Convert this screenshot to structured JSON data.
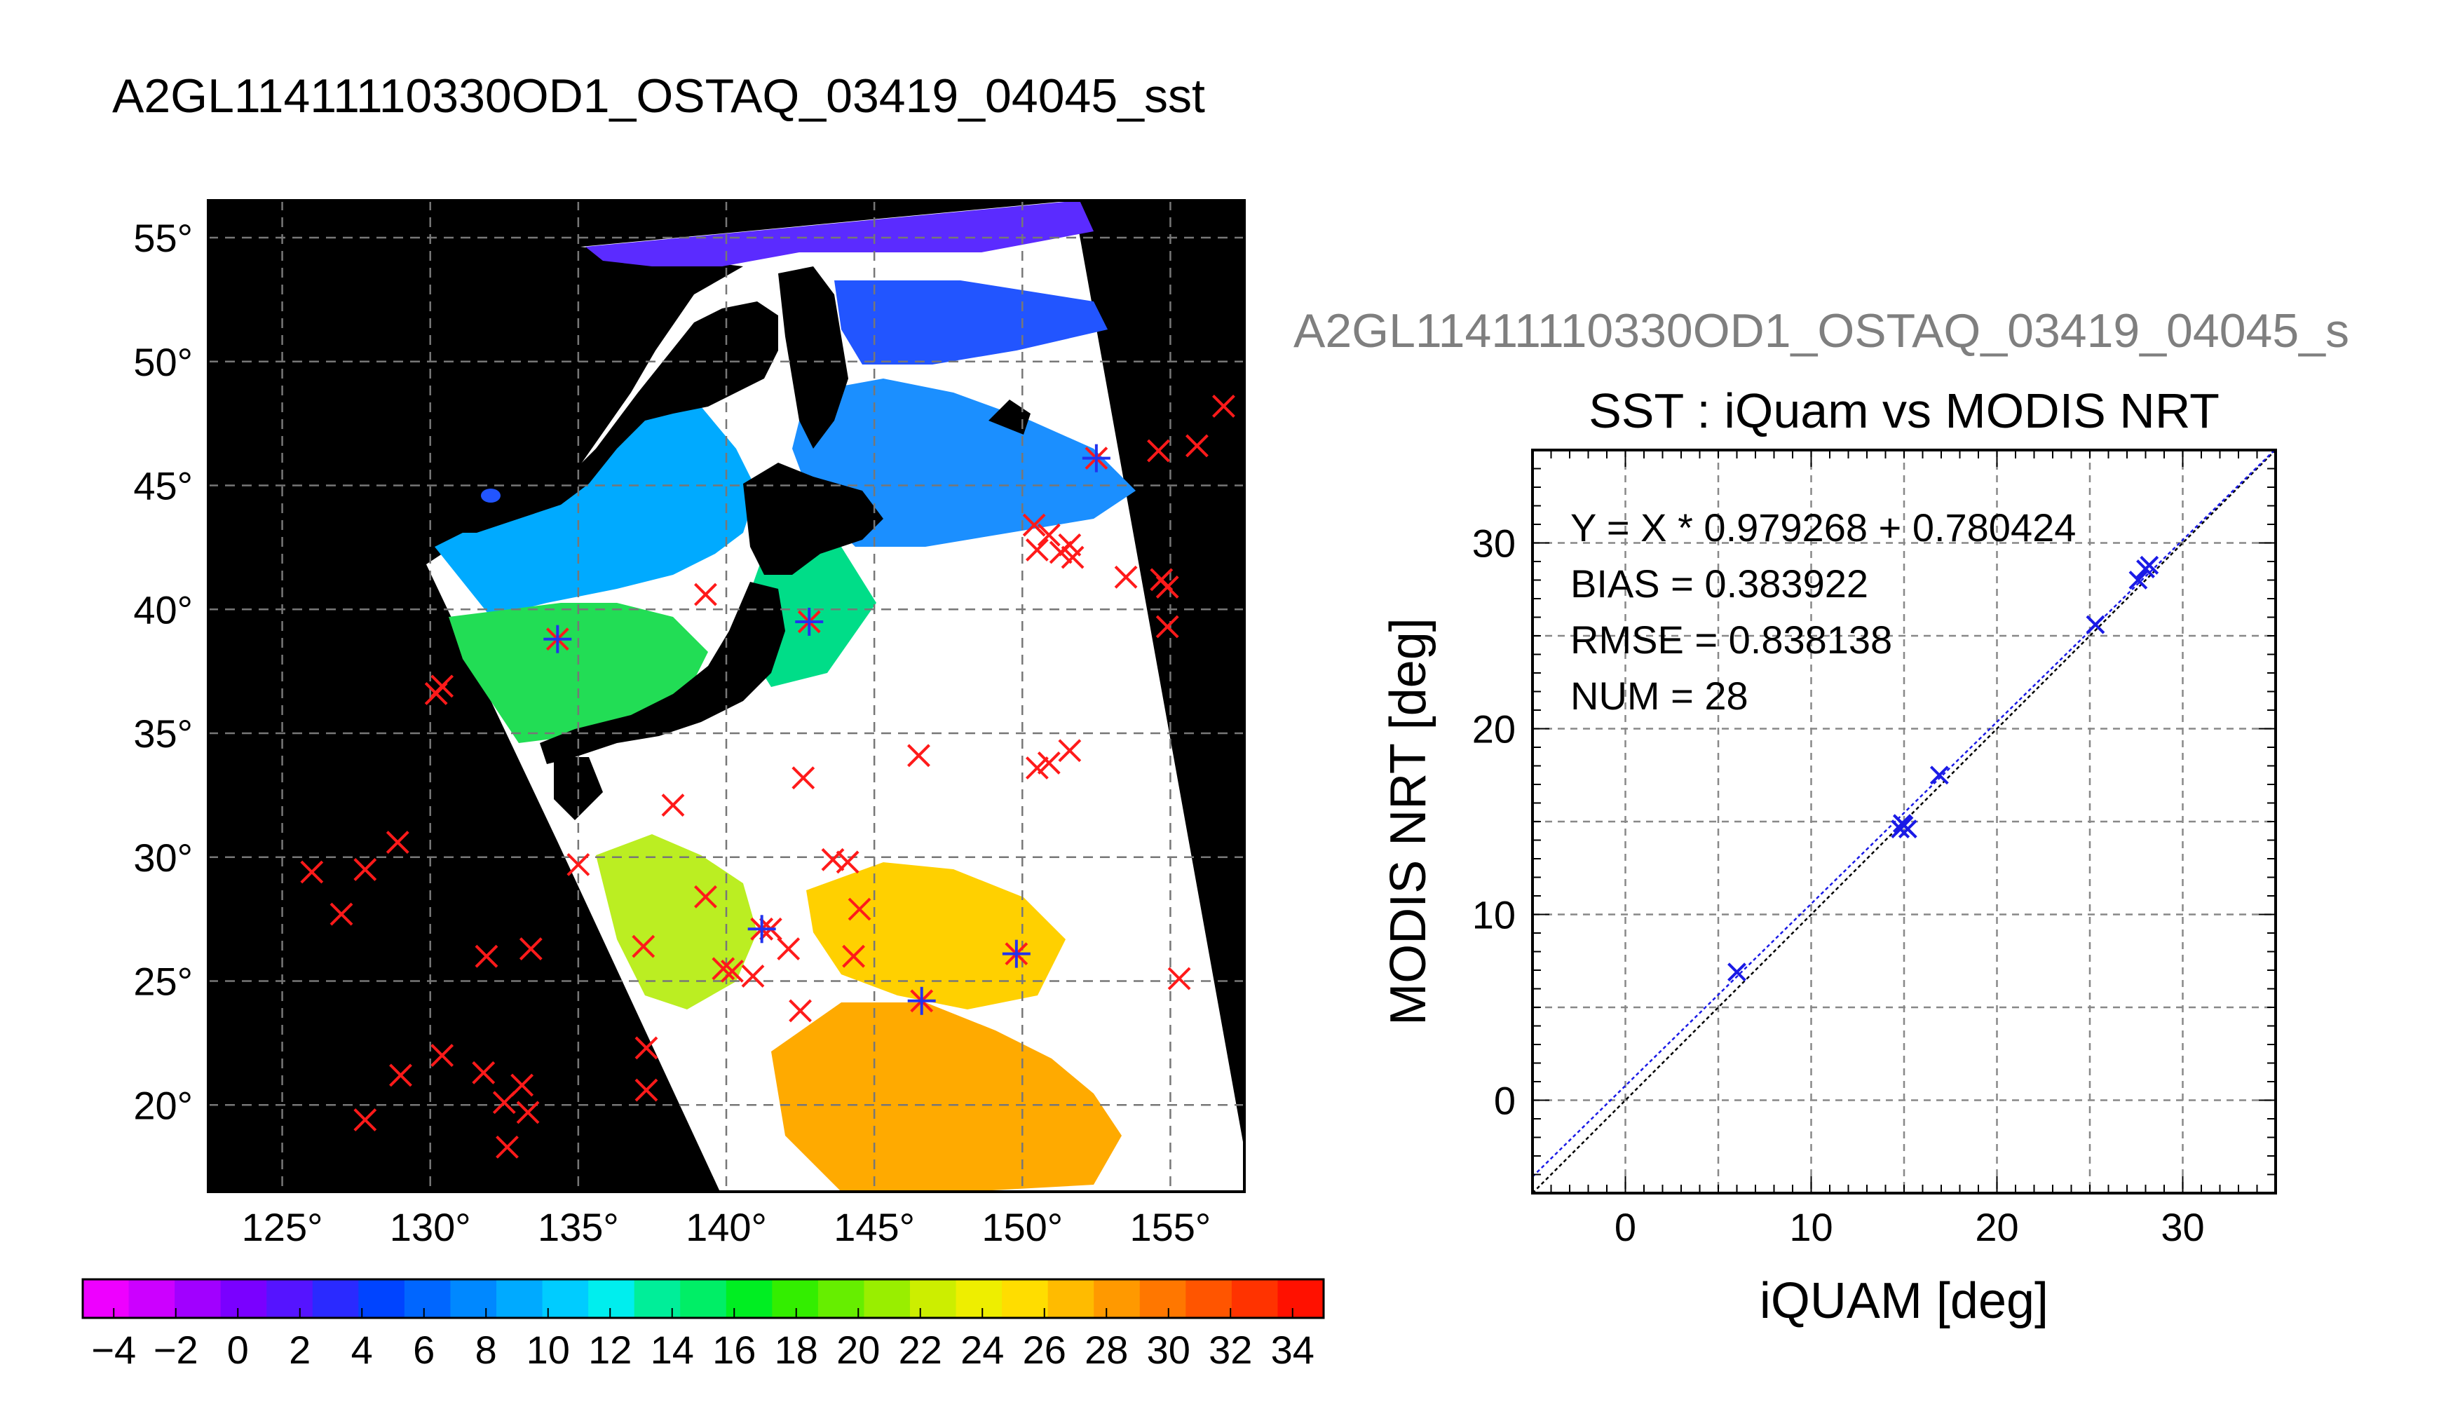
{
  "page_title": "A2GL11411110330OD1_OSTAQ_03419_04045_sst",
  "chart_data": [
    {
      "type": "map",
      "title": "A2GL11411110330OD1_OSTAQ_03419_04045_sst",
      "lon_range": [
        122.5,
        157.5
      ],
      "lat_range": [
        16.5,
        56.5
      ],
      "lon_ticks": [
        "125°",
        "130°",
        "135°",
        "140°",
        "145°",
        "150°",
        "155°"
      ],
      "lat_ticks": [
        "20°",
        "25°",
        "30°",
        "35°",
        "40°",
        "45°",
        "50°",
        "55°"
      ],
      "grid": true,
      "colorbar": {
        "range": [
          -5,
          35
        ],
        "tick_labels": [
          "−4",
          "−2",
          "0",
          "2",
          "4",
          "6",
          "8",
          "10",
          "12",
          "14",
          "16",
          "18",
          "20",
          "22",
          "24",
          "26",
          "28",
          "30",
          "32",
          "34"
        ],
        "colors": [
          "#ee00ff",
          "#cc00ff",
          "#a100ff",
          "#7a00ff",
          "#5514ff",
          "#2a2aff",
          "#0044ff",
          "#0066ff",
          "#0088ff",
          "#00aaff",
          "#00ccff",
          "#00eeee",
          "#00ee99",
          "#00ee66",
          "#00ee22",
          "#33ee00",
          "#66ee00",
          "#99ee00",
          "#ccee00",
          "#eeee00",
          "#ffdd00",
          "#ffbb00",
          "#ff9900",
          "#ff7700",
          "#ff5500",
          "#ff3300",
          "#ff1100"
        ]
      },
      "buoy_points": [
        {
          "lon": 126,
          "lat": 29.4
        },
        {
          "lon": 127,
          "lat": 27.7
        },
        {
          "lon": 127.8,
          "lat": 29.5
        },
        {
          "lon": 128.9,
          "lat": 30.6
        },
        {
          "lon": 127.8,
          "lat": 19.4
        },
        {
          "lon": 129,
          "lat": 21.2
        },
        {
          "lon": 130.4,
          "lat": 22
        },
        {
          "lon": 130.2,
          "lat": 36.6
        },
        {
          "lon": 130.4,
          "lat": 36.9
        },
        {
          "lon": 131.9,
          "lat": 26
        },
        {
          "lon": 131.8,
          "lat": 21.3
        },
        {
          "lon": 132.5,
          "lat": 20.1
        },
        {
          "lon": 132.6,
          "lat": 18.3
        },
        {
          "lon": 133.1,
          "lat": 20.8
        },
        {
          "lon": 133.3,
          "lat": 19.7
        },
        {
          "lon": 133.4,
          "lat": 26.3
        },
        {
          "lon": 135,
          "lat": 29.7
        },
        {
          "lon": 137.2,
          "lat": 26.4
        },
        {
          "lon": 137.3,
          "lat": 22.3
        },
        {
          "lon": 137.3,
          "lat": 20.6
        },
        {
          "lon": 138.2,
          "lat": 32.1
        },
        {
          "lon": 139.3,
          "lat": 40.6
        },
        {
          "lon": 139.3,
          "lat": 28.4
        },
        {
          "lon": 139.9,
          "lat": 25.5
        },
        {
          "lon": 140.2,
          "lat": 25.4
        },
        {
          "lon": 140.9,
          "lat": 25.2
        },
        {
          "lon": 141.5,
          "lat": 27.1
        },
        {
          "lon": 142.1,
          "lat": 26.3
        },
        {
          "lon": 142.5,
          "lat": 23.8
        },
        {
          "lon": 142.6,
          "lat": 33.2
        },
        {
          "lon": 143.6,
          "lat": 29.9
        },
        {
          "lon": 144.1,
          "lat": 29.8
        },
        {
          "lon": 144.3,
          "lat": 26
        },
        {
          "lon": 144.5,
          "lat": 27.9
        },
        {
          "lon": 146.5,
          "lat": 34.1
        },
        {
          "lon": 150.4,
          "lat": 43.4
        },
        {
          "lon": 150.5,
          "lat": 42.4
        },
        {
          "lon": 150.9,
          "lat": 43
        },
        {
          "lon": 151.3,
          "lat": 42.3
        },
        {
          "lon": 151.6,
          "lat": 42.6
        },
        {
          "lon": 151.7,
          "lat": 42.1
        },
        {
          "lon": 150.5,
          "lat": 33.6
        },
        {
          "lon": 150.9,
          "lat": 33.8
        },
        {
          "lon": 151.6,
          "lat": 34.3
        },
        {
          "lon": 153.5,
          "lat": 41.3
        },
        {
          "lon": 154.6,
          "lat": 46.4
        },
        {
          "lon": 154.7,
          "lat": 41.2
        },
        {
          "lon": 154.9,
          "lat": 40.9
        },
        {
          "lon": 154.9,
          "lat": 39.3
        },
        {
          "lon": 155.9,
          "lat": 46.6
        },
        {
          "lon": 156.8,
          "lat": 48.2
        },
        {
          "lon": 155.3,
          "lat": 25.1
        }
      ],
      "matched_points": [
        {
          "lon": 134.3,
          "lat": 38.8
        },
        {
          "lon": 142.8,
          "lat": 39.5
        },
        {
          "lon": 141.2,
          "lat": 27.1
        },
        {
          "lon": 146.6,
          "lat": 24.2
        },
        {
          "lon": 149.8,
          "lat": 26.1
        },
        {
          "lon": 152.5,
          "lat": 46.1
        }
      ]
    },
    {
      "type": "scatter",
      "figure_label": "A2GL11411110330OD1_OSTAQ_03419_04045_s",
      "title": "SST : iQuam vs MODIS NRT",
      "xlabel": "iQUAM [deg]",
      "ylabel": "MODIS NRT [deg]",
      "xlim": [
        -5,
        35
      ],
      "ylim": [
        -5,
        35
      ],
      "x_ticks": [
        0,
        10,
        20,
        30
      ],
      "y_ticks": [
        0,
        10,
        20,
        30
      ],
      "grid": true,
      "stats": [
        "Y = X * 0.979268 + 0.780424",
        "BIAS = 0.383922",
        "RMSE = 0.838138",
        "NUM = 28"
      ],
      "fit": {
        "slope": 0.979268,
        "intercept": 0.780424
      },
      "points": [
        {
          "x": 6.0,
          "y": 6.9
        },
        {
          "x": 14.8,
          "y": 14.6
        },
        {
          "x": 15.0,
          "y": 14.8
        },
        {
          "x": 15.2,
          "y": 14.6
        },
        {
          "x": 14.9,
          "y": 14.9
        },
        {
          "x": 16.9,
          "y": 17.5
        },
        {
          "x": 25.3,
          "y": 25.6
        },
        {
          "x": 27.6,
          "y": 28.0
        },
        {
          "x": 28.0,
          "y": 28.6
        },
        {
          "x": 28.2,
          "y": 28.8
        }
      ]
    }
  ]
}
